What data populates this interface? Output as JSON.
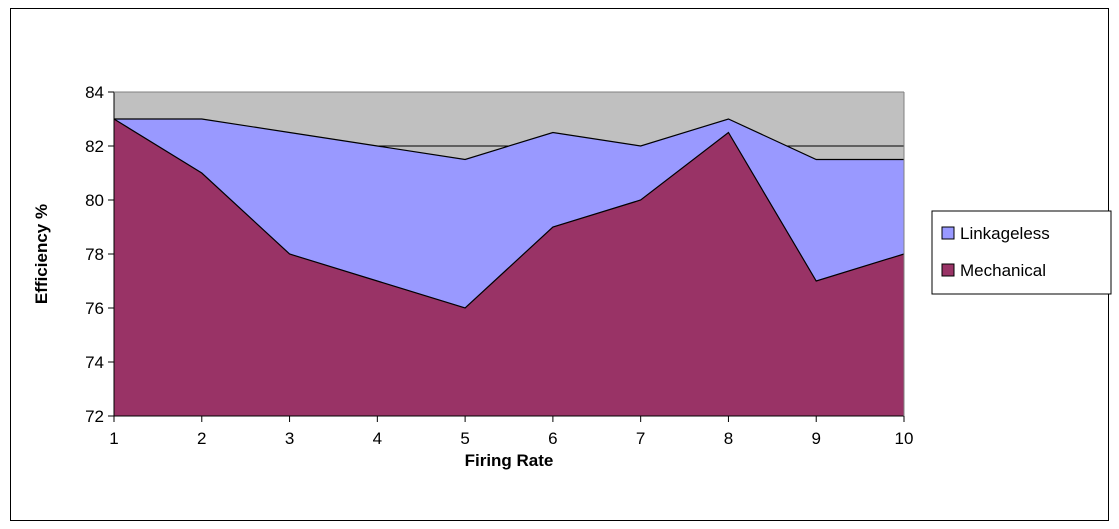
{
  "chart_data": {
    "type": "area",
    "stacked": false,
    "x": [
      1,
      2,
      3,
      4,
      5,
      6,
      7,
      8,
      9,
      10
    ],
    "series": [
      {
        "name": "Linkageless",
        "values": [
          83,
          83,
          82.5,
          82,
          81.5,
          82.5,
          82,
          83,
          81.5,
          81.5
        ],
        "color": "#9999FF"
      },
      {
        "name": "Mechanical",
        "values": [
          83,
          81,
          78,
          77,
          76,
          79,
          80,
          82.5,
          77,
          78
        ],
        "color": "#993366"
      }
    ],
    "xlabel": "Firing Rate",
    "ylabel": "Efficiency %",
    "ylim": [
      72,
      84
    ],
    "yticks": [
      72,
      74,
      76,
      78,
      80,
      82,
      84
    ],
    "xticks": [
      "1",
      "2",
      "3",
      "4",
      "5",
      "6",
      "7",
      "8",
      "9",
      "10"
    ],
    "plot_background": "#C0C0C0",
    "grid": true,
    "legend_position": "right",
    "legend": [
      "Linkageless",
      "Mechanical"
    ]
  }
}
